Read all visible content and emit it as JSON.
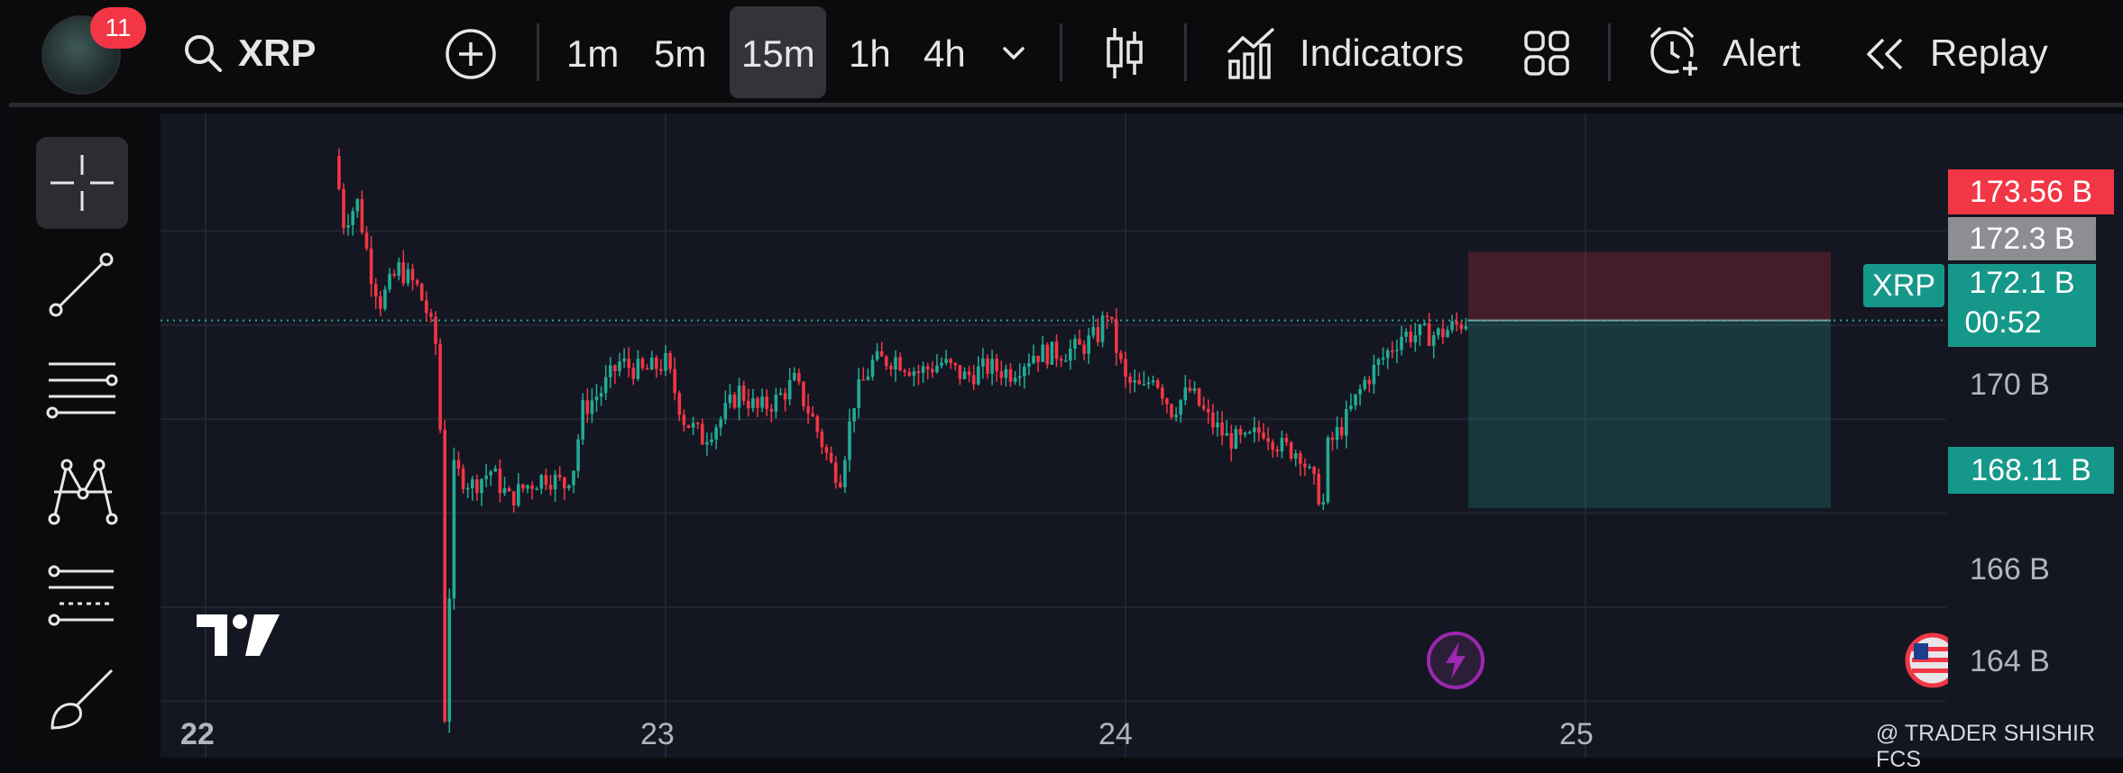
{
  "app": {
    "notification_count": "11",
    "symbol": "XRP"
  },
  "toolbar": {
    "timeframes": [
      "1m",
      "5m",
      "15m",
      "1h",
      "4h"
    ],
    "active_timeframe": "15m",
    "indicators_label": "Indicators",
    "alert_label": "Alert",
    "replay_label": "Replay",
    "icons": [
      "plus-circle-icon",
      "chevron-down-icon",
      "candles-icon",
      "indicators-icon",
      "layout-grid-icon",
      "alarm-plus-icon",
      "rewind-icon"
    ]
  },
  "sidebar": {
    "tools": [
      "crosshair-icon",
      "trend-line-icon",
      "horizontal-lines-icon",
      "pattern-icon",
      "fib-levels-icon",
      "brush-icon"
    ],
    "active_tool": "crosshair-icon"
  },
  "chart": {
    "price_scale": {
      "upper_target": "173.56 B",
      "high_marker": "172.3 B",
      "symbol_tag": "XRP",
      "last_price": "172.1 B",
      "countdown": "00:52",
      "lower_target": "168.11 B",
      "ticks": [
        "170 B",
        "166 B",
        "164 B"
      ]
    },
    "dates": [
      "22",
      "23",
      "24",
      "25"
    ],
    "watermark": "@ TRADER SHISHIR FCS"
  },
  "colors": {
    "up": "#22ab94",
    "down": "#f23645",
    "background": "#141722",
    "toolbar": "#0b0b0d",
    "accent_purple": "#9c27b0"
  },
  "chart_data": {
    "type": "candlestick",
    "symbol": "XRP",
    "interval": "15m",
    "y_unit": "B",
    "ylim": [
      162.8,
      176.5
    ],
    "x_ticks": [
      "22",
      "23",
      "24",
      "25"
    ],
    "series": [
      {
        "path_points": [
          [
            22.28,
            175.6
          ],
          [
            22.3,
            174.2
          ],
          [
            22.33,
            174.6
          ],
          [
            22.36,
            173.1
          ],
          [
            22.38,
            172.5
          ],
          [
            22.42,
            173.2
          ],
          [
            22.46,
            172.8
          ],
          [
            22.48,
            172.3
          ],
          [
            22.5,
            171.6
          ],
          [
            22.51,
            169.8
          ],
          [
            22.52,
            163.7
          ],
          [
            22.54,
            168.9
          ],
          [
            22.58,
            168.6
          ],
          [
            22.62,
            168.9
          ],
          [
            22.66,
            168.3
          ],
          [
            22.7,
            168.6
          ],
          [
            22.74,
            168.8
          ],
          [
            22.78,
            168.6
          ],
          [
            22.8,
            169.0
          ],
          [
            22.82,
            170.2
          ],
          [
            22.86,
            170.6
          ],
          [
            22.9,
            171.2
          ],
          [
            22.95,
            171.0
          ],
          [
            23.0,
            171.2
          ],
          [
            23.04,
            170.0
          ],
          [
            23.08,
            169.6
          ],
          [
            23.12,
            170.0
          ],
          [
            23.16,
            170.6
          ],
          [
            23.2,
            170.2
          ],
          [
            23.24,
            170.4
          ],
          [
            23.28,
            170.8
          ],
          [
            23.32,
            170.0
          ],
          [
            23.36,
            169.0
          ],
          [
            23.38,
            168.8
          ],
          [
            23.41,
            170.4
          ],
          [
            23.45,
            171.2
          ],
          [
            23.5,
            171.3
          ],
          [
            23.55,
            171.0
          ],
          [
            23.6,
            171.2
          ],
          [
            23.65,
            170.9
          ],
          [
            23.7,
            171.1
          ],
          [
            23.75,
            171.0
          ],
          [
            23.8,
            171.4
          ],
          [
            23.84,
            171.4
          ],
          [
            23.9,
            171.5
          ],
          [
            23.94,
            171.8
          ],
          [
            23.96,
            172.3
          ],
          [
            23.98,
            171.5
          ],
          [
            24.0,
            170.8
          ],
          [
            24.04,
            170.6
          ],
          [
            24.06,
            171.0
          ],
          [
            24.1,
            170.2
          ],
          [
            24.14,
            170.6
          ],
          [
            24.18,
            170.0
          ],
          [
            24.22,
            169.6
          ],
          [
            24.26,
            169.5
          ],
          [
            24.3,
            169.8
          ],
          [
            24.34,
            169.4
          ],
          [
            24.38,
            169.3
          ],
          [
            24.4,
            168.8
          ],
          [
            24.43,
            168.2
          ],
          [
            24.44,
            169.4
          ],
          [
            24.48,
            170.0
          ],
          [
            24.52,
            170.8
          ],
          [
            24.56,
            171.3
          ],
          [
            24.6,
            171.8
          ],
          [
            24.64,
            171.8
          ],
          [
            24.68,
            171.8
          ],
          [
            24.72,
            172.0
          ],
          [
            24.74,
            172.1
          ]
        ]
      }
    ],
    "position_box": {
      "entry": 172.1,
      "stop": 173.56,
      "target": 168.11
    },
    "grid": true,
    "last_price_line": 172.1
  }
}
